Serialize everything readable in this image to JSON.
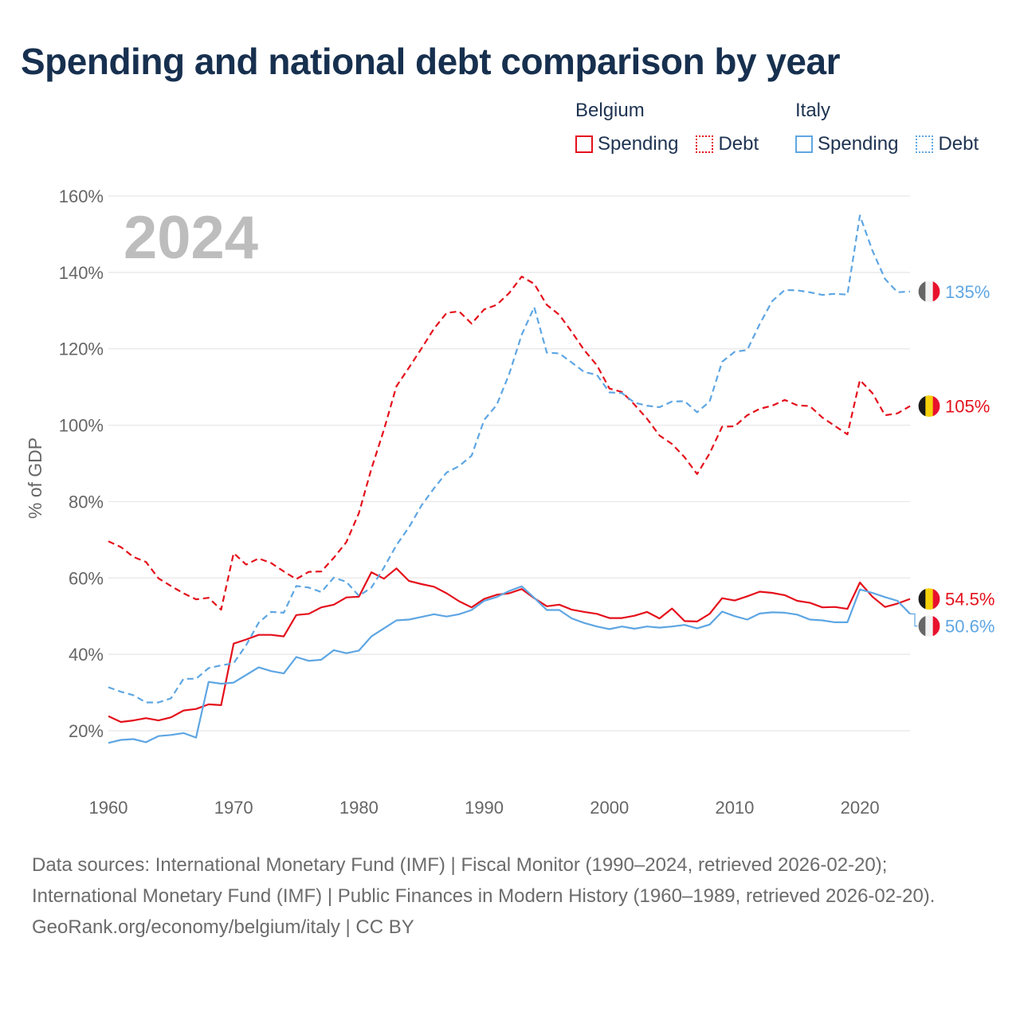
{
  "title": "Spending and national debt comparison by year",
  "legend": {
    "groups": [
      {
        "name": "Belgium",
        "color": "#e4101c",
        "items": [
          {
            "label": "Spending",
            "style": "solid"
          },
          {
            "label": "Debt",
            "style": "dashed"
          }
        ]
      },
      {
        "name": "Italy",
        "color": "#5ea6e3",
        "items": [
          {
            "label": "Spending",
            "style": "solid"
          },
          {
            "label": "Debt",
            "style": "dashed"
          }
        ]
      }
    ]
  },
  "chart_data": {
    "type": "line",
    "ylabel": "% of GDP",
    "xlabel": "",
    "xlim": [
      1960,
      2024
    ],
    "ylim": [
      10,
      160
    ],
    "xticks": [
      "1960",
      "1970",
      "1980",
      "1990",
      "2000",
      "2010",
      "2020"
    ],
    "xtick_values": [
      1960,
      1970,
      1980,
      1990,
      2000,
      2010,
      2020
    ],
    "yticks": [
      "20%",
      "40%",
      "60%",
      "80%",
      "100%",
      "120%",
      "140%",
      "160%"
    ],
    "ytick_values": [
      20,
      40,
      60,
      80,
      100,
      120,
      140,
      160
    ],
    "year_watermark": "2024",
    "x": [
      1960,
      1961,
      1962,
      1963,
      1964,
      1965,
      1966,
      1967,
      1968,
      1969,
      1970,
      1971,
      1972,
      1973,
      1974,
      1975,
      1976,
      1977,
      1978,
      1979,
      1980,
      1981,
      1982,
      1983,
      1984,
      1985,
      1986,
      1987,
      1988,
      1989,
      1990,
      1991,
      1992,
      1993,
      1994,
      1995,
      1996,
      1997,
      1998,
      1999,
      2000,
      2001,
      2002,
      2003,
      2004,
      2005,
      2006,
      2007,
      2008,
      2009,
      2010,
      2011,
      2012,
      2013,
      2014,
      2015,
      2016,
      2017,
      2018,
      2019,
      2020,
      2021,
      2022,
      2023,
      2024
    ],
    "series": [
      {
        "name": "Belgium Spending",
        "country": "Belgium",
        "kind": "Spending",
        "color": "#e4101c",
        "dashed": false,
        "values": [
          23.8,
          22.3,
          22.7,
          23.3,
          22.7,
          23.5,
          25.3,
          25.7,
          26.9,
          26.7,
          42.8,
          43.9,
          45.1,
          45.1,
          44.7,
          50.3,
          50.6,
          52.3,
          53.0,
          54.9,
          55.1,
          61.5,
          59.8,
          62.5,
          59.2,
          58.4,
          57.7,
          56.0,
          53.9,
          52.3,
          54.5,
          55.6,
          56.0,
          57.1,
          54.7,
          52.6,
          53.0,
          51.7,
          51.1,
          50.6,
          49.5,
          49.5,
          50.1,
          51.1,
          49.4,
          52.0,
          48.7,
          48.6,
          50.6,
          54.7,
          54.1,
          55.2,
          56.4,
          56.1,
          55.5,
          54.0,
          53.5,
          52.3,
          52.4,
          51.9,
          58.8,
          55.1,
          52.4,
          53.3,
          54.5
        ]
      },
      {
        "name": "Belgium Debt",
        "country": "Belgium",
        "kind": "Debt",
        "color": "#e4101c",
        "dashed": true,
        "values": [
          69.6,
          68.1,
          65.5,
          64.2,
          59.9,
          57.9,
          56.0,
          54.4,
          54.8,
          51.7,
          66.5,
          63.5,
          65.1,
          63.9,
          61.7,
          59.7,
          61.6,
          61.7,
          65.3,
          69.4,
          77.0,
          88.6,
          98.8,
          110.2,
          115.1,
          120.1,
          125.3,
          129.4,
          129.8,
          126.6,
          130.3,
          131.5,
          134.6,
          138.9,
          137.0,
          131.5,
          128.9,
          124.4,
          119.6,
          115.7,
          109.6,
          108.7,
          105.4,
          101.7,
          97.3,
          95.1,
          91.6,
          87.2,
          92.6,
          99.6,
          99.7,
          102.6,
          104.3,
          105.1,
          106.6,
          105.2,
          105.0,
          102.0,
          99.8,
          97.6,
          111.8,
          108.4,
          102.6,
          103.1,
          105.0
        ]
      },
      {
        "name": "Italy Spending",
        "country": "Italy",
        "kind": "Spending",
        "color": "#5ea6e3",
        "dashed": false,
        "values": [
          16.8,
          17.6,
          17.8,
          17.0,
          18.6,
          18.9,
          19.4,
          18.2,
          32.8,
          32.3,
          32.6,
          34.6,
          36.6,
          35.6,
          35.0,
          39.3,
          38.3,
          38.6,
          41.1,
          40.3,
          41.0,
          44.7,
          46.8,
          48.9,
          49.1,
          49.8,
          50.5,
          49.9,
          50.5,
          51.6,
          54.0,
          55.0,
          56.6,
          57.8,
          54.8,
          51.6,
          51.6,
          49.4,
          48.2,
          47.3,
          46.6,
          47.3,
          46.7,
          47.3,
          47.0,
          47.3,
          47.7,
          46.8,
          47.8,
          51.2,
          50.0,
          49.1,
          50.7,
          51.0,
          50.9,
          50.4,
          49.1,
          48.9,
          48.4,
          48.4,
          57.0,
          56.1,
          55.0,
          54.0,
          50.6
        ]
      },
      {
        "name": "Italy Debt",
        "country": "Italy",
        "kind": "Debt",
        "color": "#5ea6e3",
        "dashed": true,
        "values": [
          31.4,
          30.2,
          29.3,
          27.4,
          27.4,
          28.5,
          33.6,
          33.6,
          36.4,
          37.1,
          37.7,
          42.4,
          48.3,
          51.1,
          50.9,
          57.9,
          57.5,
          56.3,
          60.1,
          59.0,
          55.3,
          57.5,
          62.7,
          68.6,
          73.3,
          79.0,
          83.5,
          87.6,
          89.3,
          92.0,
          101.4,
          105.3,
          113.4,
          123.7,
          130.9,
          119.0,
          118.8,
          116.4,
          113.9,
          113.2,
          108.6,
          108.4,
          105.9,
          105.1,
          104.7,
          106.2,
          106.3,
          103.4,
          106.2,
          116.6,
          119.2,
          119.7,
          126.5,
          132.5,
          135.4,
          135.3,
          134.8,
          134.1,
          134.4,
          134.2,
          154.9,
          145.7,
          138.3,
          134.8,
          135.0
        ]
      }
    ],
    "end_labels": [
      {
        "text": "135%",
        "country": "Italy",
        "color": "#5ea6e3",
        "value": 135.0
      },
      {
        "text": "105%",
        "country": "Belgium",
        "color": "#e4101c",
        "value": 105.0
      },
      {
        "text": "54.5%",
        "country": "Belgium",
        "color": "#e4101c",
        "value": 54.5
      },
      {
        "text": "50.6%",
        "country": "Italy",
        "color": "#5ea6e3",
        "value": 50.6
      }
    ]
  },
  "flags": {
    "Belgium": [
      "#1a1a1a",
      "#f5d10c",
      "#e8112d"
    ],
    "Italy": [
      "#666666",
      "#f2f2f2",
      "#e8112d"
    ]
  },
  "source": {
    "lines": [
      "Data sources: International Monetary Fund (IMF) | Fiscal Monitor (1990–2024, retrieved 2026-02-20); International Monetary Fund (IMF) | Public Finances in Modern History (1960–1989, retrieved 2026-02-20).",
      "GeoRank.org/economy/belgium/italy | CC BY"
    ]
  }
}
